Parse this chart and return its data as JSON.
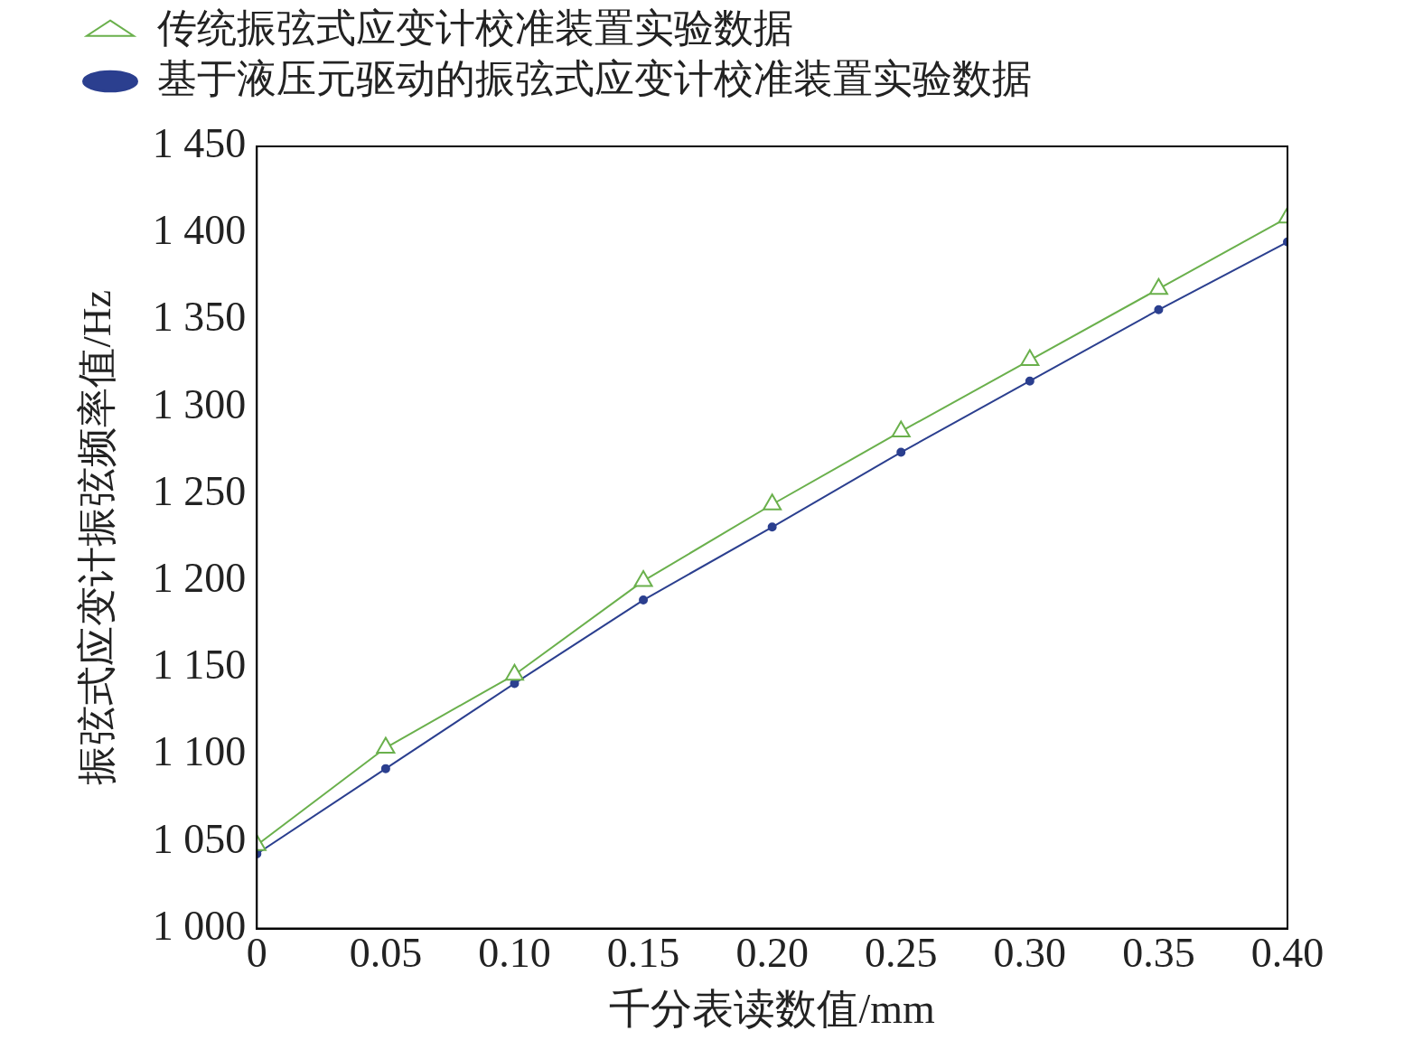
{
  "chart_data": {
    "type": "line",
    "xlabel": "千分表读数值/mm",
    "ylabel": "振弦式应变计振弦频率值/Hz",
    "x": [
      0,
      0.05,
      0.1,
      0.15,
      0.2,
      0.25,
      0.3,
      0.35,
      0.4
    ],
    "series": [
      {
        "name": "传统振弦式应变计校准装置实验数据",
        "color": "#6ab04c",
        "marker": "triangle",
        "values": [
          1048,
          1104,
          1146,
          1200,
          1244,
          1286,
          1327,
          1368,
          1409
        ]
      },
      {
        "name": "基于液压元驱动的振弦式应变计校准装置实验数据",
        "color": "#2b3f8f",
        "marker": "circle",
        "values": [
          1043,
          1092,
          1141,
          1189,
          1231,
          1274,
          1315,
          1356,
          1395
        ]
      }
    ],
    "xlim": [
      0,
      0.4
    ],
    "xticks": [
      0,
      {
        "value": 0.05,
        "label": "0.05"
      },
      {
        "value": 0.1,
        "label": "0.10"
      },
      {
        "value": 0.15,
        "label": "0.15"
      },
      {
        "value": 0.2,
        "label": "0.20"
      },
      {
        "value": 0.25,
        "label": "0.25"
      },
      {
        "value": 0.3,
        "label": "0.30"
      },
      {
        "value": 0.35,
        "label": "0.35"
      },
      {
        "value": 0.4,
        "label": "0.40"
      }
    ],
    "ylim": [
      1000,
      1450
    ],
    "yticks": [
      {
        "value": 1000,
        "label": "1 000"
      },
      {
        "value": 1050,
        "label": "1 050"
      },
      {
        "value": 1100,
        "label": "1 100"
      },
      {
        "value": 1150,
        "label": "1 150"
      },
      {
        "value": 1200,
        "label": "1 200"
      },
      {
        "value": 1250,
        "label": "1 250"
      },
      {
        "value": 1300,
        "label": "1 300"
      },
      {
        "value": 1350,
        "label": "1 350"
      },
      {
        "value": 1400,
        "label": "1 400"
      },
      {
        "value": 1450,
        "label": "1 450"
      }
    ],
    "grid": false,
    "legend": "top left",
    "line_style": "solid"
  }
}
